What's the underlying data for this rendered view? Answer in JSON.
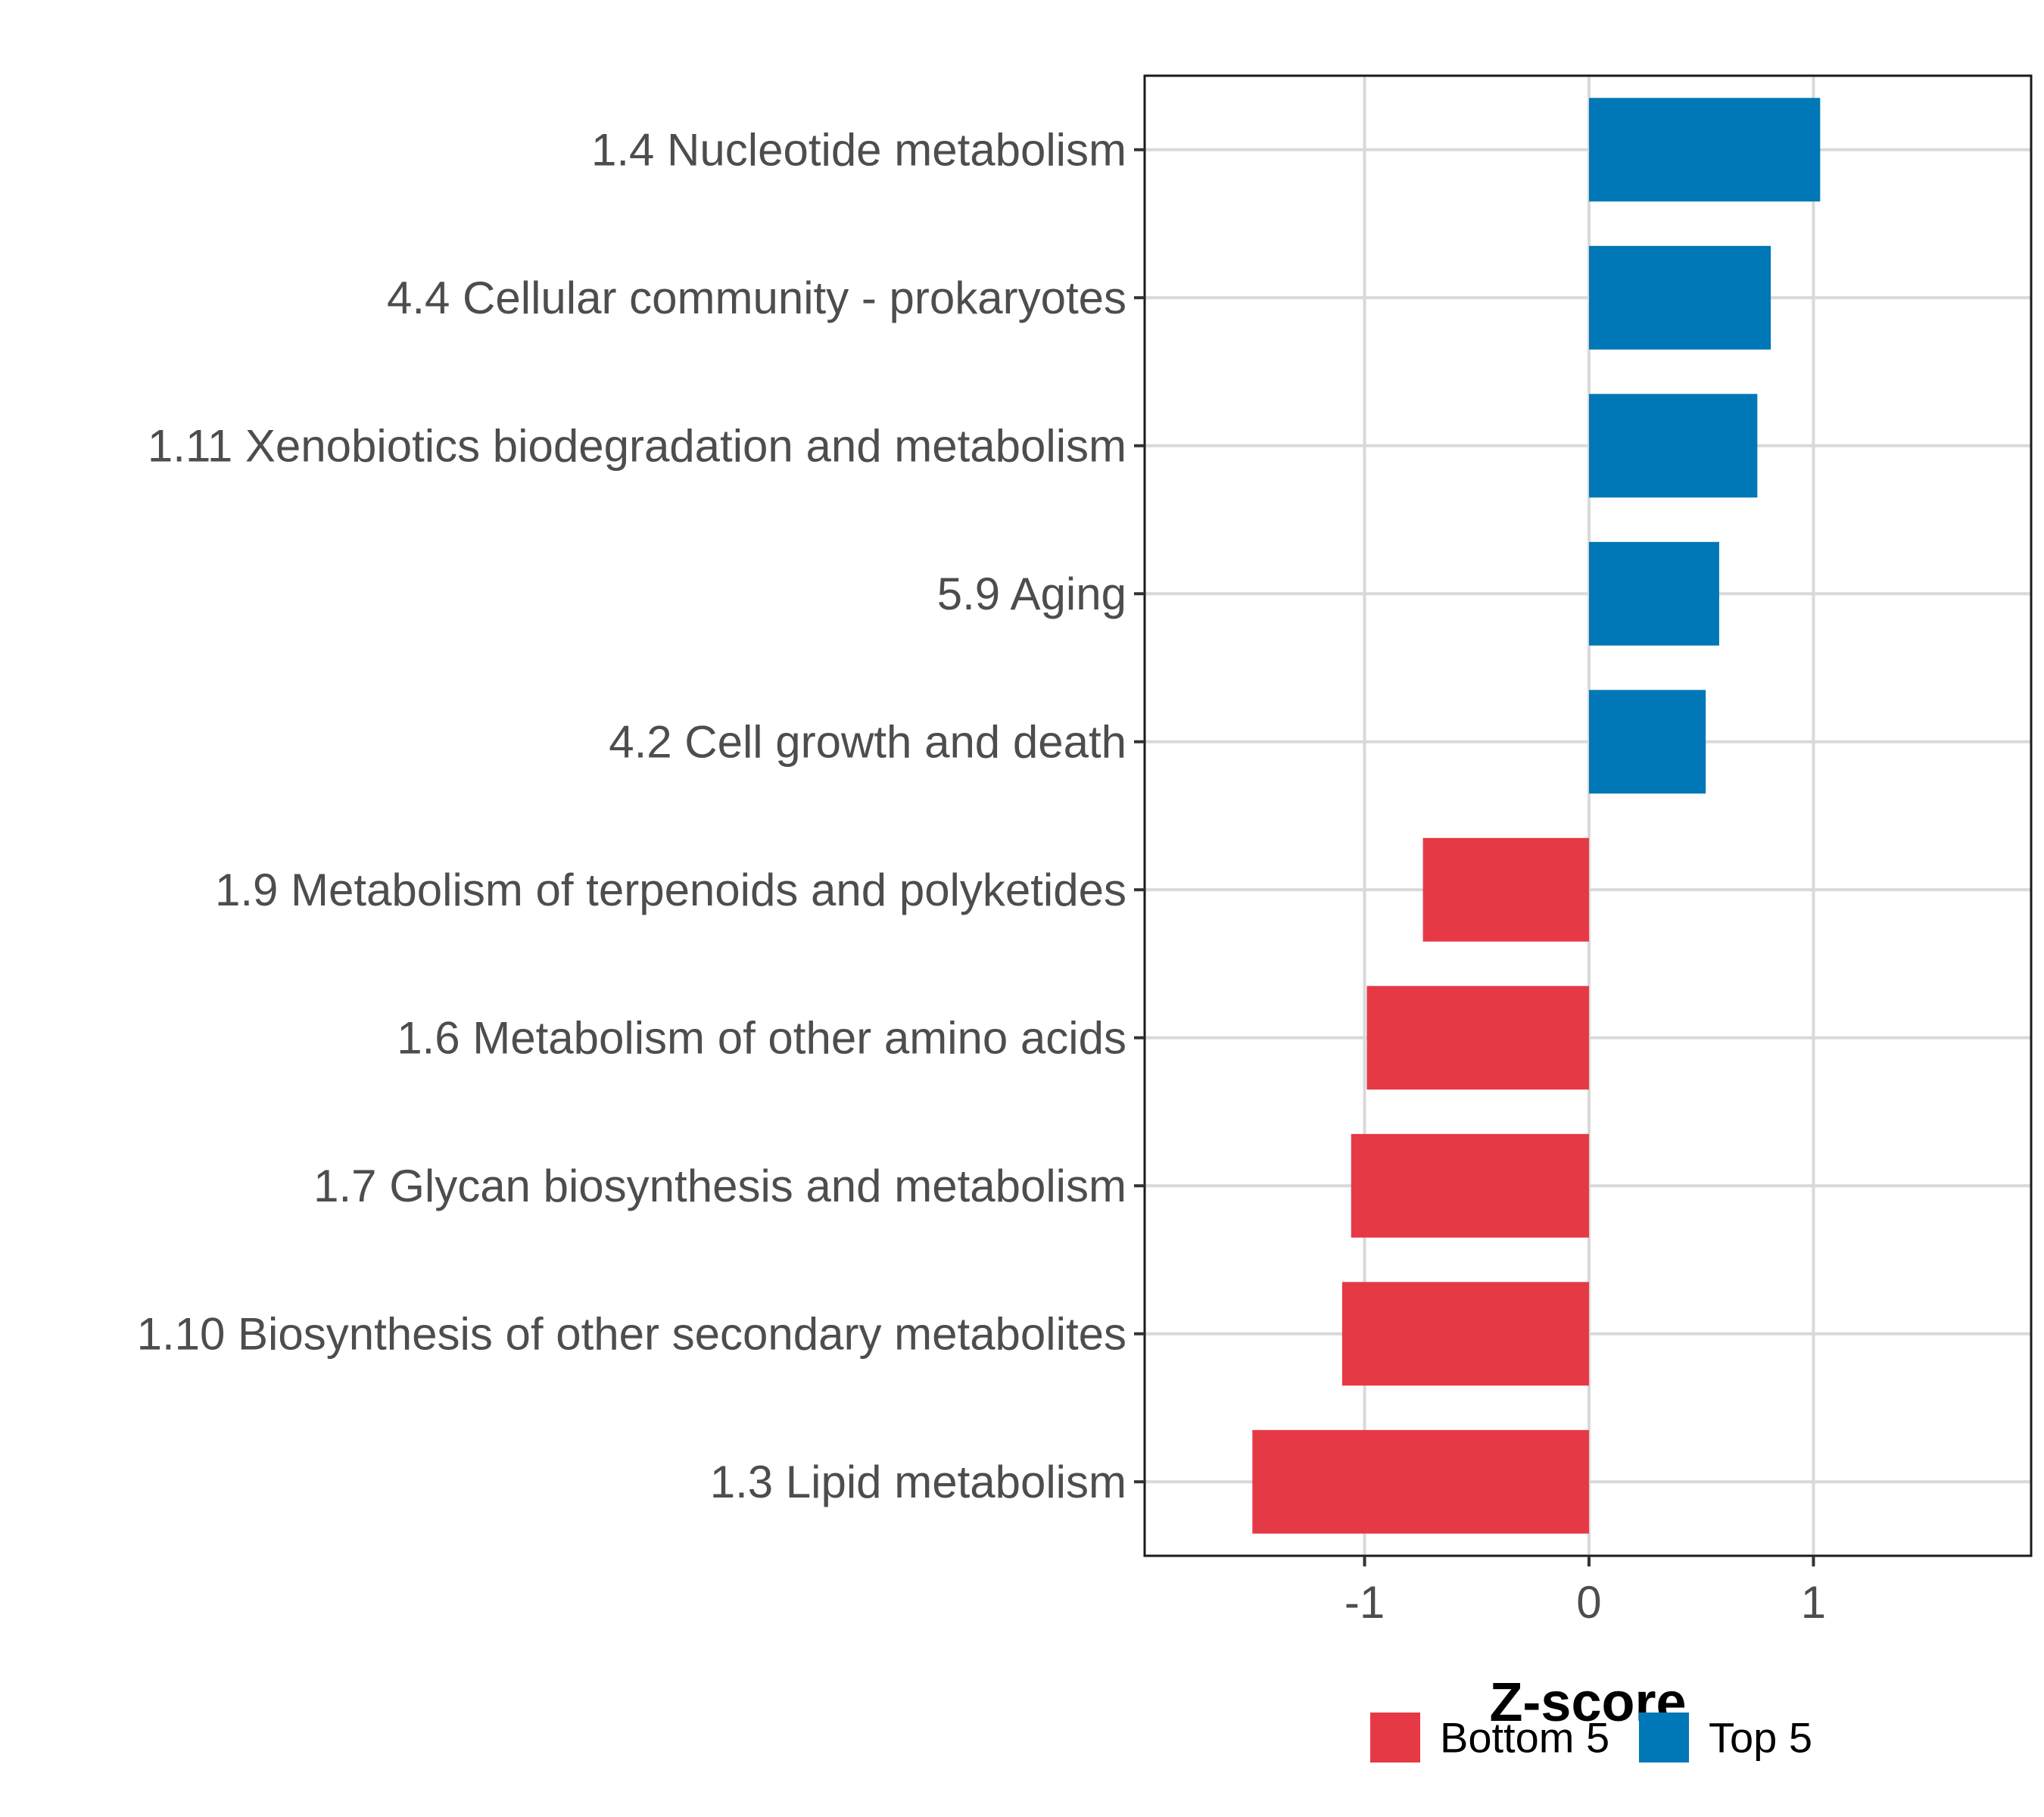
{
  "chart_data": {
    "type": "bar",
    "orientation": "horizontal",
    "title": "",
    "xlabel": "Z-score",
    "ylabel": "",
    "xlim": [
      -1.98,
      1.97
    ],
    "xticks": [
      -1,
      0,
      1
    ],
    "xtick_labels": [
      "-1",
      "0",
      "1"
    ],
    "grid": true,
    "legend_position": "bottom",
    "groups": [
      {
        "name": "Bottom 5",
        "color": "#e63946"
      },
      {
        "name": "Top 5",
        "color": "#0077b6"
      }
    ],
    "categories": [
      "1.4 Nucleotide metabolism",
      "4.4 Cellular community - prokaryotes",
      "1.11 Xenobiotics biodegradation and metabolism",
      "5.9 Aging",
      "4.2 Cell growth and death",
      "1.9 Metabolism of terpenoids and polyketides",
      "1.6 Metabolism of other amino acids",
      "1.7 Glycan biosynthesis and metabolism",
      "1.10 Biosynthesis of other secondary metabolites",
      "1.3 Lipid metabolism"
    ],
    "values": [
      1.03,
      0.81,
      0.75,
      0.58,
      0.52,
      -0.74,
      -0.99,
      -1.06,
      -1.1,
      -1.5
    ],
    "group_of": [
      "Top 5",
      "Top 5",
      "Top 5",
      "Top 5",
      "Top 5",
      "Bottom 5",
      "Bottom 5",
      "Bottom 5",
      "Bottom 5",
      "Bottom 5"
    ]
  }
}
